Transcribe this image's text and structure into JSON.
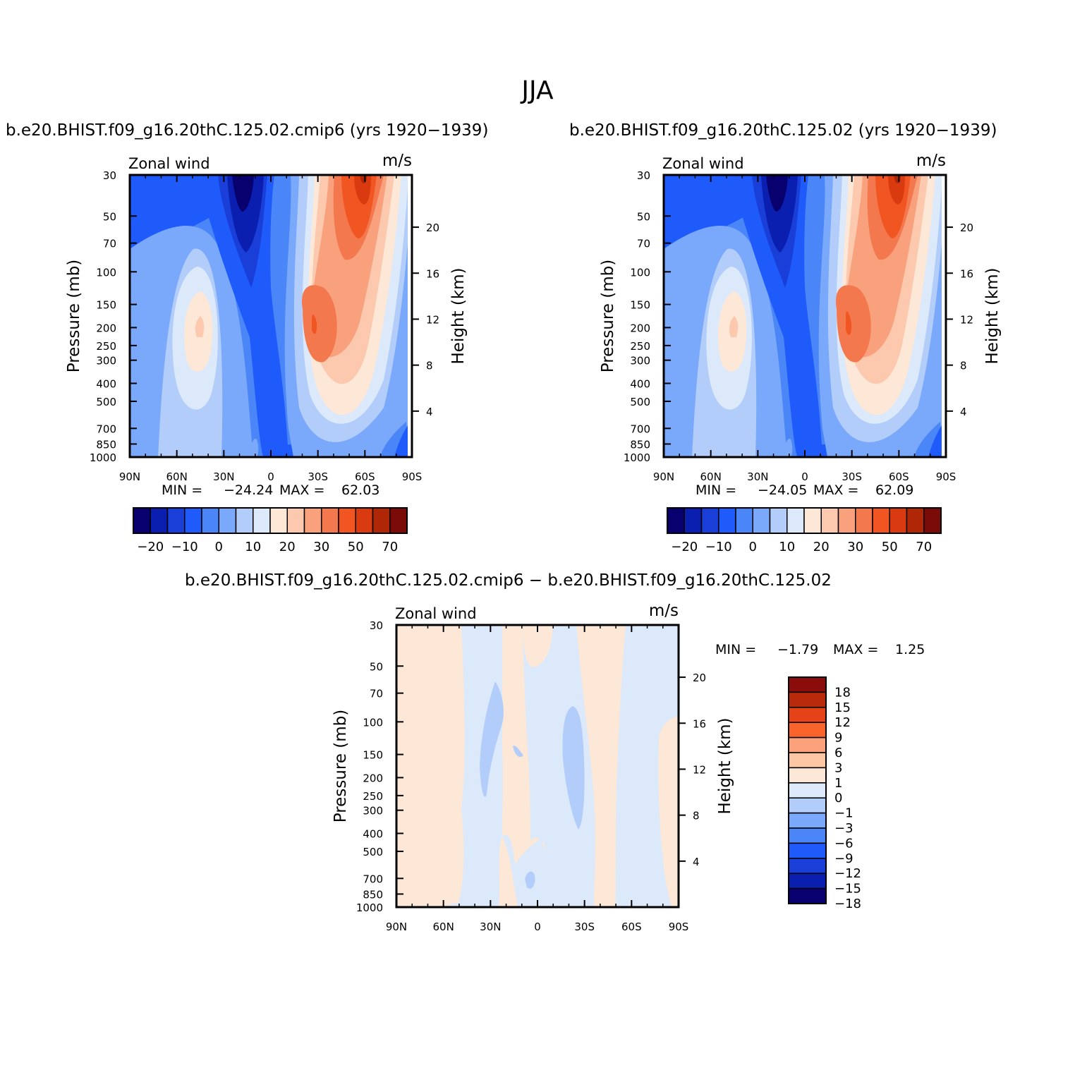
{
  "figure": {
    "title": "JJA",
    "panel_left_title": "b.e20.BHIST.f09_g16.20thC.125.02.cmip6 (yrs 1920−1939)",
    "panel_right_title": "b.e20.BHIST.f09_g16.20thC.125.02 (yrs 1920−1939)",
    "panel_bottom_title": "b.e20.BHIST.f09_g16.20thC.125.02.cmip6 − b.e20.BHIST.f09_g16.20thC.125.02"
  },
  "panels": {
    "left": {
      "variable": "Zonal wind",
      "units": "m/s",
      "min_label": "MIN =",
      "min_value": "−24.24",
      "max_label": "MAX =",
      "max_value": "62.03",
      "ylabel": "Pressure (mb)",
      "y2label": "Height (km)"
    },
    "right": {
      "variable": "Zonal wind",
      "units": "m/s",
      "min_label": "MIN =",
      "min_value": "−24.05",
      "max_label": "MAX =",
      "max_value": "62.09",
      "ylabel": "Pressure (mb)",
      "y2label": "Height (km)"
    },
    "bottom": {
      "variable": "Zonal wind",
      "units": "m/s",
      "min_label": "MIN =",
      "min_value": "−1.79",
      "max_label": "MAX =",
      "max_value": "1.25",
      "ylabel": "Pressure (mb)",
      "y2label": "Height (km)"
    }
  },
  "axes": {
    "x_ticks": [
      "90N",
      "60N",
      "30N",
      "0",
      "30S",
      "60S",
      "90S"
    ],
    "p_ticks": [
      "30",
      "50",
      "70",
      "100",
      "150",
      "200",
      "250",
      "300",
      "400",
      "500",
      "700",
      "850",
      "1000"
    ],
    "p_values": [
      30,
      50,
      70,
      100,
      150,
      200,
      250,
      300,
      400,
      500,
      700,
      850,
      1000
    ],
    "h_ticks": [
      "20",
      "16",
      "12",
      "8",
      "4"
    ]
  },
  "chart_data": [
    {
      "type": "heatmap",
      "title": "b.e20.BHIST.f09_g16.20thC.125.02.cmip6 (yrs 1920−1939)",
      "xlabel": "",
      "ylabel": "Pressure (mb)",
      "y2label": "Height (km)",
      "xlim": [
        90,
        -90
      ],
      "ylim": [
        1000,
        30
      ],
      "yscale": "log",
      "min": -24.24,
      "max": 62.03,
      "contour_levels": [
        -25,
        -20,
        -15,
        -10,
        -5,
        0,
        5,
        10,
        15,
        20,
        25,
        30,
        40,
        50,
        60,
        70
      ]
    },
    {
      "type": "heatmap",
      "title": "b.e20.BHIST.f09_g16.20thC.125.02 (yrs 1920−1939)",
      "xlabel": "",
      "ylabel": "Pressure (mb)",
      "y2label": "Height (km)",
      "xlim": [
        90,
        -90
      ],
      "ylim": [
        1000,
        30
      ],
      "yscale": "log",
      "min": -24.05,
      "max": 62.09,
      "contour_levels": [
        -25,
        -20,
        -15,
        -10,
        -5,
        0,
        5,
        10,
        15,
        20,
        25,
        30,
        40,
        50,
        60,
        70
      ]
    },
    {
      "type": "heatmap",
      "title": "b.e20.BHIST.f09_g16.20thC.125.02.cmip6 − b.e20.BHIST.f09_g16.20thC.125.02",
      "xlabel": "",
      "ylabel": "Pressure (mb)",
      "y2label": "Height (km)",
      "xlim": [
        90,
        -90
      ],
      "ylim": [
        1000,
        30
      ],
      "yscale": "log",
      "min": -1.79,
      "max": 1.25,
      "contour_levels": [
        -18,
        -15,
        -12,
        -9,
        -6,
        -3,
        -1,
        0,
        1,
        3,
        6,
        9,
        12,
        15,
        18
      ]
    }
  ],
  "colorbars": {
    "abs": {
      "colors": [
        "#08006e",
        "#0a1fb0",
        "#1a3fd8",
        "#1f5bfa",
        "#4a86f8",
        "#7aa8fa",
        "#b3cdfa",
        "#dbe9fb",
        "#fde7d7",
        "#fcc9ae",
        "#f9a07d",
        "#f4784e",
        "#f05522",
        "#d93a10",
        "#b02708",
        "#7a0b08"
      ],
      "labels": [
        "−20",
        "−10",
        "0",
        "10",
        "20",
        "30",
        "50",
        "70"
      ]
    },
    "diff": {
      "colors": [
        "#8b0d0b",
        "#b82a0c",
        "#e54317",
        "#f9642d",
        "#fba27c",
        "#fdc7a6",
        "#fde7d7",
        "#dbe9fb",
        "#b3cdfa",
        "#7aa8fa",
        "#4a86f8",
        "#1f5bfa",
        "#1a3fd8",
        "#0a1fb0",
        "#08006e"
      ],
      "labels": [
        "18",
        "15",
        "12",
        "9",
        "6",
        "3",
        "1",
        "0",
        "−1",
        "−3",
        "−6",
        "−9",
        "−12",
        "−15",
        "−18"
      ]
    }
  }
}
